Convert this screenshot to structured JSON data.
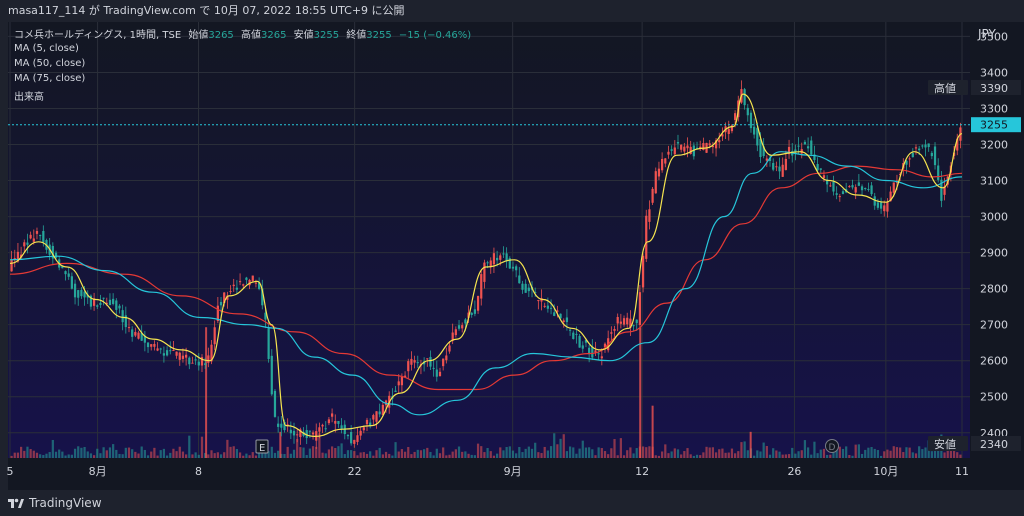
{
  "header": {
    "published_by": "masa117_114 が TradingView.com で 10月 07, 2022 18:55 UTC+9 に公開"
  },
  "legend": {
    "symbol": "コメ兵ホールディングス, 1時間, TSE",
    "open_label": "始値",
    "open": "3265",
    "high_label": "高値",
    "high": "3265",
    "low_label": "安値",
    "low": "3255",
    "close_label": "終値",
    "close": "3255",
    "change": "−15 (−0.46%)",
    "ma5": "MA (5, close)",
    "ma50": "MA (50, close)",
    "ma75": "MA (75, close)",
    "volume": "出来高"
  },
  "axis": {
    "currency": "JPY",
    "high_tag_label": "高値",
    "high_tag_value": "3390",
    "last_price_tag": "3255",
    "low_tag_label": "安値",
    "low_tag_value": "2340",
    "earnings_marker": "E",
    "dividend_marker": "D"
  },
  "footer": {
    "brand": "TradingView"
  },
  "chart_data": {
    "type": "candlestick",
    "yticks": [
      3500,
      3400,
      3300,
      3200,
      3100,
      3000,
      2900,
      2800,
      2700,
      2600,
      2500,
      2400
    ],
    "ylim": [
      2330,
      3540
    ],
    "xticks": [
      {
        "label": "5",
        "pos": 0.0
      },
      {
        "label": "8月",
        "pos": 0.092
      },
      {
        "label": "8",
        "pos": 0.198
      },
      {
        "label": "22",
        "pos": 0.362
      },
      {
        "label": "9月",
        "pos": 0.528
      },
      {
        "label": "12",
        "pos": 0.664
      },
      {
        "label": "26",
        "pos": 0.824
      },
      {
        "label": "10月",
        "pos": 0.92
      },
      {
        "label": "11",
        "pos": 1.0
      }
    ],
    "price_path": [
      [
        0.0,
        2860
      ],
      [
        0.03,
        2960
      ],
      [
        0.05,
        2880
      ],
      [
        0.07,
        2790
      ],
      [
        0.09,
        2760
      ],
      [
        0.11,
        2760
      ],
      [
        0.13,
        2680
      ],
      [
        0.15,
        2640
      ],
      [
        0.17,
        2620
      ],
      [
        0.19,
        2600
      ],
      [
        0.21,
        2600
      ],
      [
        0.22,
        2760
      ],
      [
        0.24,
        2810
      ],
      [
        0.26,
        2830
      ],
      [
        0.27,
        2700
      ],
      [
        0.28,
        2430
      ],
      [
        0.3,
        2400
      ],
      [
        0.32,
        2390
      ],
      [
        0.34,
        2440
      ],
      [
        0.36,
        2380
      ],
      [
        0.38,
        2430
      ],
      [
        0.4,
        2490
      ],
      [
        0.42,
        2590
      ],
      [
        0.44,
        2600
      ],
      [
        0.45,
        2560
      ],
      [
        0.47,
        2690
      ],
      [
        0.49,
        2740
      ],
      [
        0.5,
        2870
      ],
      [
        0.52,
        2900
      ],
      [
        0.54,
        2810
      ],
      [
        0.56,
        2760
      ],
      [
        0.58,
        2720
      ],
      [
        0.6,
        2650
      ],
      [
        0.62,
        2610
      ],
      [
        0.64,
        2710
      ],
      [
        0.66,
        2700
      ],
      [
        0.67,
        2990
      ],
      [
        0.68,
        3120
      ],
      [
        0.7,
        3200
      ],
      [
        0.72,
        3180
      ],
      [
        0.74,
        3200
      ],
      [
        0.76,
        3260
      ],
      [
        0.77,
        3340
      ],
      [
        0.79,
        3180
      ],
      [
        0.81,
        3120
      ],
      [
        0.82,
        3180
      ],
      [
        0.84,
        3200
      ],
      [
        0.85,
        3130
      ],
      [
        0.87,
        3060
      ],
      [
        0.88,
        3070
      ],
      [
        0.9,
        3090
      ],
      [
        0.91,
        3040
      ],
      [
        0.92,
        3020
      ],
      [
        0.94,
        3150
      ],
      [
        0.96,
        3200
      ],
      [
        0.97,
        3180
      ],
      [
        0.98,
        3050
      ],
      [
        1.0,
        3260
      ]
    ],
    "ma5_path": [
      [
        0.0,
        2870
      ],
      [
        0.03,
        2930
      ],
      [
        0.06,
        2860
      ],
      [
        0.09,
        2770
      ],
      [
        0.12,
        2720
      ],
      [
        0.15,
        2660
      ],
      [
        0.18,
        2630
      ],
      [
        0.21,
        2600
      ],
      [
        0.23,
        2780
      ],
      [
        0.26,
        2820
      ],
      [
        0.275,
        2700
      ],
      [
        0.29,
        2420
      ],
      [
        0.32,
        2390
      ],
      [
        0.35,
        2410
      ],
      [
        0.38,
        2420
      ],
      [
        0.41,
        2510
      ],
      [
        0.44,
        2600
      ],
      [
        0.47,
        2660
      ],
      [
        0.5,
        2860
      ],
      [
        0.53,
        2880
      ],
      [
        0.56,
        2770
      ],
      [
        0.59,
        2690
      ],
      [
        0.62,
        2630
      ],
      [
        0.65,
        2690
      ],
      [
        0.67,
        2930
      ],
      [
        0.7,
        3170
      ],
      [
        0.73,
        3190
      ],
      [
        0.76,
        3250
      ],
      [
        0.77,
        3340
      ],
      [
        0.8,
        3170
      ],
      [
        0.83,
        3180
      ],
      [
        0.86,
        3100
      ],
      [
        0.89,
        3060
      ],
      [
        0.92,
        3040
      ],
      [
        0.95,
        3180
      ],
      [
        0.98,
        3080
      ],
      [
        1.0,
        3230
      ]
    ],
    "ma50_path": [
      [
        0.0,
        2880
      ],
      [
        0.05,
        2890
      ],
      [
        0.1,
        2850
      ],
      [
        0.15,
        2790
      ],
      [
        0.2,
        2720
      ],
      [
        0.25,
        2700
      ],
      [
        0.28,
        2690
      ],
      [
        0.32,
        2610
      ],
      [
        0.36,
        2560
      ],
      [
        0.4,
        2480
      ],
      [
        0.43,
        2450
      ],
      [
        0.47,
        2490
      ],
      [
        0.51,
        2580
      ],
      [
        0.55,
        2620
      ],
      [
        0.59,
        2610
      ],
      [
        0.63,
        2600
      ],
      [
        0.67,
        2650
      ],
      [
        0.71,
        2800
      ],
      [
        0.75,
        3000
      ],
      [
        0.78,
        3120
      ],
      [
        0.81,
        3180
      ],
      [
        0.84,
        3170
      ],
      [
        0.88,
        3140
      ],
      [
        0.92,
        3100
      ],
      [
        0.96,
        3080
      ],
      [
        1.0,
        3110
      ]
    ],
    "ma75_path": [
      [
        0.0,
        2840
      ],
      [
        0.06,
        2870
      ],
      [
        0.12,
        2840
      ],
      [
        0.18,
        2780
      ],
      [
        0.24,
        2730
      ],
      [
        0.3,
        2680
      ],
      [
        0.35,
        2620
      ],
      [
        0.4,
        2560
      ],
      [
        0.45,
        2520
      ],
      [
        0.49,
        2520
      ],
      [
        0.53,
        2560
      ],
      [
        0.57,
        2600
      ],
      [
        0.61,
        2620
      ],
      [
        0.65,
        2680
      ],
      [
        0.69,
        2760
      ],
      [
        0.73,
        2880
      ],
      [
        0.77,
        2980
      ],
      [
        0.81,
        3080
      ],
      [
        0.85,
        3120
      ],
      [
        0.89,
        3140
      ],
      [
        0.93,
        3130
      ],
      [
        0.97,
        3110
      ],
      [
        1.0,
        3120
      ]
    ],
    "volume_spikes": [
      {
        "pos": 0.206,
        "height": 0.3
      },
      {
        "pos": 0.662,
        "height": 0.3
      },
      {
        "pos": 0.675,
        "height": 0.12
      },
      {
        "pos": 0.778,
        "height": 0.06
      },
      {
        "pos": 0.284,
        "height": 0.06
      }
    ],
    "high_value": 3390,
    "low_value": 2340,
    "last_value": 3255,
    "colors": {
      "up": "#ef5350",
      "down": "#26a69a",
      "ma5": "#f6e54f",
      "ma50": "#26c6da",
      "ma75": "#e53935",
      "bg_top": "#131722",
      "bg_bottom": "#16124a",
      "last_tag": "#26c6da"
    }
  }
}
